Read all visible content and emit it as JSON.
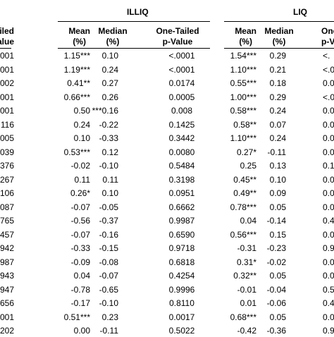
{
  "groups": {
    "illiq": "ILLIQ",
    "liq": "LIQ"
  },
  "headers": {
    "pv0_line1": "Tailed",
    "pv0_line2": "alue",
    "illiq_mean_line1": "Mean",
    "illiq_mean_line2": "(%)",
    "illiq_median_line1": "Median",
    "illiq_median_line2": "(%)",
    "illiq_pv_line1": "One-Tailed",
    "illiq_pv_line2": "p-Value",
    "liq_mean_line1": "Mean",
    "liq_mean_line2": "(%)",
    "liq_median_line1": "Median",
    "liq_median_line2": "(%)",
    "liq_pv_line1": "One-",
    "liq_pv_line2": "p-V"
  },
  "rows": [
    {
      "pv0": "001",
      "illiq_mean": "1.15***",
      "illiq_median": "0.10",
      "illiq_pv": "<.0001",
      "liq_mean": "1.54***",
      "liq_median": "0.29",
      "liq_pv": "<."
    },
    {
      "pv0": "001",
      "illiq_mean": "1.19***",
      "illiq_median": "0.24",
      "illiq_pv": "<.0001",
      "liq_mean": "1.10***",
      "liq_median": "0.21",
      "liq_pv": "<.0"
    },
    {
      "pv0": "002",
      "illiq_mean": "0.41**",
      "illiq_median": "0.27",
      "illiq_pv": "0.0174",
      "liq_mean": "0.55***",
      "liq_median": "0.18",
      "liq_pv": "0.0"
    },
    {
      "pv0": "001",
      "illiq_mean": "0.66***",
      "illiq_median": "0.26",
      "illiq_pv": "0.0005",
      "liq_mean": "1.00***",
      "liq_median": "0.29",
      "liq_pv": "<.0"
    },
    {
      "pv0": "001",
      "illiq_mean": "0.50",
      "illiq_median": "***0.16",
      "illiq_pv": "0.008",
      "liq_mean": "0.58***",
      "liq_median": "0.24",
      "liq_pv": "0.0"
    },
    {
      "pv0": "116",
      "illiq_mean": "0.24",
      "illiq_median": "-0.22",
      "illiq_pv": "0.1425",
      "liq_mean": "0.58**",
      "liq_median": "0.07",
      "liq_pv": "0.0"
    },
    {
      "pv0": "005",
      "illiq_mean": "0.10",
      "illiq_median": "-0.33",
      "illiq_pv": "0.3442",
      "liq_mean": "1.10***",
      "liq_median": "0.24",
      "liq_pv": "0.0"
    },
    {
      "pv0": "039",
      "illiq_mean": "0.53***",
      "illiq_median": "0.12",
      "illiq_pv": "0.0080",
      "liq_mean": "0.27*",
      "liq_median": "-0.11",
      "liq_pv": "0.0"
    },
    {
      "pv0": "376",
      "illiq_mean": "-0.02",
      "illiq_median": "-0.10",
      "illiq_pv": "0.5484",
      "liq_mean": "0.25",
      "liq_median": "0.13",
      "liq_pv": "0.1"
    },
    {
      "pv0": "267",
      "illiq_mean": "0.11",
      "illiq_median": "0.11",
      "illiq_pv": "0.3198",
      "liq_mean": "0.45**",
      "liq_median": "0.10",
      "liq_pv": "0.0"
    },
    {
      "pv0": "106",
      "illiq_mean": "0.26*",
      "illiq_median": "0.10",
      "illiq_pv": "0.0951",
      "liq_mean": "0.49**",
      "liq_median": "0.09",
      "liq_pv": "0.0"
    },
    {
      "pv0": "087",
      "illiq_mean": "-0.07",
      "illiq_median": "-0.05",
      "illiq_pv": "0.6662",
      "liq_mean": "0.78***",
      "liq_median": "0.05",
      "liq_pv": "0.0"
    },
    {
      "pv0": "765",
      "illiq_mean": "-0.56",
      "illiq_median": "-0.37",
      "illiq_pv": "0.9987",
      "liq_mean": "0.04",
      "liq_median": "-0.14",
      "liq_pv": "0.4"
    },
    {
      "pv0": "457",
      "illiq_mean": "-0.07",
      "illiq_median": "-0.16",
      "illiq_pv": "0.6590",
      "liq_mean": "0.56***",
      "liq_median": "0.15",
      "liq_pv": "0.0"
    },
    {
      "pv0": "942",
      "illiq_mean": "-0.33",
      "illiq_median": "-0.15",
      "illiq_pv": "0.9718",
      "liq_mean": "-0.31",
      "liq_median": "-0.23",
      "liq_pv": "0.9"
    },
    {
      "pv0": "987",
      "illiq_mean": "-0.09",
      "illiq_median": "-0.08",
      "illiq_pv": "0.6818",
      "liq_mean": "0.31*",
      "liq_median": "-0.02",
      "liq_pv": "0.0"
    },
    {
      "pv0": "943",
      "illiq_mean": "0.04",
      "illiq_median": "-0.07",
      "illiq_pv": "0.4254",
      "liq_mean": "0.32**",
      "liq_median": "0.05",
      "liq_pv": "0.0"
    },
    {
      "pv0": "947",
      "illiq_mean": "-0.78",
      "illiq_median": "-0.65",
      "illiq_pv": "0.9996",
      "liq_mean": "-0.01",
      "liq_median": "-0.04",
      "liq_pv": "0.5"
    },
    {
      "pv0": "656",
      "illiq_mean": "-0.17",
      "illiq_median": "-0.10",
      "illiq_pv": "0.8110",
      "liq_mean": "0.01",
      "liq_median": "-0.06",
      "liq_pv": "0.4"
    },
    {
      "pv0": "001",
      "illiq_mean": "0.51***",
      "illiq_median": "0.23",
      "illiq_pv": "0.0017",
      "liq_mean": "0.68***",
      "liq_median": "0.05",
      "liq_pv": "0.0"
    },
    {
      "pv0": "202",
      "illiq_mean": "0.00",
      "illiq_median": "-0.11",
      "illiq_pv": "0.5022",
      "liq_mean": "-0.42",
      "liq_median": "-0.36",
      "liq_pv": "0.9"
    }
  ]
}
